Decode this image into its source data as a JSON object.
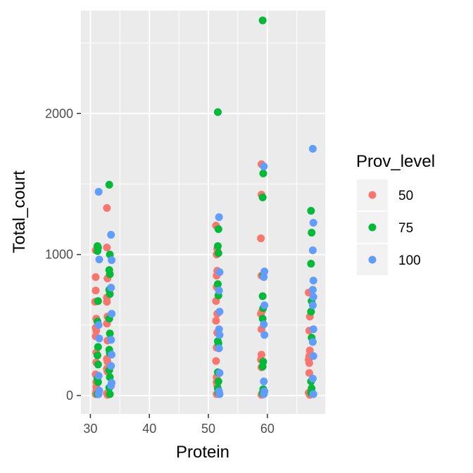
{
  "chart_data": {
    "type": "scatter",
    "xlabel": "Protein",
    "ylabel": "Total_court",
    "xlim": [
      28.4,
      69.8
    ],
    "ylim": [
      -130,
      2730
    ],
    "x_ticks": [
      30,
      40,
      50,
      60
    ],
    "y_ticks": [
      0,
      1000,
      2000
    ],
    "x_tick_labels": [
      "30",
      "40",
      "50",
      "60"
    ],
    "y_tick_labels": [
      "0",
      "1000",
      "2000"
    ],
    "grid": true,
    "legend": {
      "title": "Prov_level",
      "position": "right"
    },
    "series": [
      {
        "name": "50",
        "color": "#F8766D",
        "points": [
          [
            30.9,
            1030
          ],
          [
            30.9,
            840
          ],
          [
            30.9,
            745
          ],
          [
            30.8,
            665
          ],
          [
            31.0,
            545
          ],
          [
            30.9,
            480
          ],
          [
            31.0,
            460
          ],
          [
            30.9,
            420
          ],
          [
            31.0,
            305
          ],
          [
            31.0,
            235
          ],
          [
            30.9,
            150
          ],
          [
            31.0,
            95
          ],
          [
            31.0,
            60
          ],
          [
            31.0,
            30
          ],
          [
            30.9,
            10
          ],
          [
            32.8,
            1330
          ],
          [
            32.8,
            1050
          ],
          [
            32.9,
            830
          ],
          [
            32.8,
            695
          ],
          [
            32.8,
            665
          ],
          [
            32.9,
            560
          ],
          [
            32.8,
            510
          ],
          [
            32.9,
            390
          ],
          [
            32.8,
            260
          ],
          [
            32.9,
            240
          ],
          [
            32.8,
            190
          ],
          [
            32.9,
            170
          ],
          [
            32.8,
            15
          ],
          [
            32.9,
            5
          ],
          [
            51.3,
            1205
          ],
          [
            51.5,
            1040
          ],
          [
            51.4,
            1000
          ],
          [
            51.5,
            885
          ],
          [
            51.4,
            850
          ],
          [
            51.4,
            770
          ],
          [
            51.3,
            670
          ],
          [
            51.5,
            580
          ],
          [
            51.3,
            530
          ],
          [
            51.5,
            445
          ],
          [
            51.4,
            340
          ],
          [
            51.3,
            245
          ],
          [
            51.4,
            130
          ],
          [
            51.4,
            95
          ],
          [
            51.5,
            70
          ],
          [
            51.4,
            10
          ],
          [
            59.0,
            1640
          ],
          [
            59.0,
            1425
          ],
          [
            58.9,
            1115
          ],
          [
            59.0,
            850
          ],
          [
            59.1,
            600
          ],
          [
            58.9,
            580
          ],
          [
            59.0,
            470
          ],
          [
            59.0,
            290
          ],
          [
            58.9,
            255
          ],
          [
            59.0,
            200
          ],
          [
            59.1,
            15
          ],
          [
            59.0,
            5
          ],
          [
            67.0,
            730
          ],
          [
            67.2,
            560
          ],
          [
            67.1,
            460
          ],
          [
            67.2,
            320
          ],
          [
            67.1,
            280
          ],
          [
            67.0,
            255
          ],
          [
            67.1,
            230
          ],
          [
            67.1,
            160
          ],
          [
            67.0,
            20
          ],
          [
            67.2,
            5
          ]
        ]
      },
      {
        "name": "75",
        "color": "#00BA38",
        "points": [
          [
            31.2,
            1060
          ],
          [
            31.3,
            1050
          ],
          [
            31.2,
            1025
          ],
          [
            31.3,
            670
          ],
          [
            31.2,
            525
          ],
          [
            31.3,
            345
          ],
          [
            31.2,
            285
          ],
          [
            31.3,
            220
          ],
          [
            31.2,
            120
          ],
          [
            31.3,
            95
          ],
          [
            31.2,
            10
          ],
          [
            33.2,
            1495
          ],
          [
            33.3,
            1000
          ],
          [
            33.2,
            890
          ],
          [
            33.3,
            860
          ],
          [
            33.2,
            750
          ],
          [
            33.3,
            720
          ],
          [
            33.2,
            545
          ],
          [
            33.3,
            440
          ],
          [
            33.2,
            325
          ],
          [
            33.3,
            300
          ],
          [
            33.2,
            180
          ],
          [
            33.3,
            130
          ],
          [
            33.2,
            55
          ],
          [
            33.3,
            10
          ],
          [
            51.6,
            2010
          ],
          [
            51.7,
            1180
          ],
          [
            51.6,
            1060
          ],
          [
            51.7,
            1010
          ],
          [
            51.6,
            790
          ],
          [
            51.7,
            710
          ],
          [
            51.6,
            385
          ],
          [
            51.7,
            370
          ],
          [
            51.6,
            165
          ],
          [
            51.7,
            100
          ],
          [
            51.6,
            50
          ],
          [
            51.7,
            20
          ],
          [
            59.2,
            2660
          ],
          [
            59.3,
            1575
          ],
          [
            59.2,
            1405
          ],
          [
            59.3,
            850
          ],
          [
            59.2,
            705
          ],
          [
            59.3,
            620
          ],
          [
            59.2,
            545
          ],
          [
            59.3,
            240
          ],
          [
            59.2,
            205
          ],
          [
            59.3,
            45
          ],
          [
            59.2,
            15
          ],
          [
            67.4,
            1310
          ],
          [
            67.5,
            1155
          ],
          [
            67.4,
            935
          ],
          [
            67.5,
            670
          ],
          [
            67.4,
            595
          ],
          [
            67.5,
            410
          ],
          [
            67.4,
            100
          ],
          [
            67.5,
            50
          ],
          [
            67.4,
            20
          ]
        ]
      },
      {
        "name": "100",
        "color": "#619CFF",
        "points": [
          [
            31.4,
            1445
          ],
          [
            31.5,
            965
          ],
          [
            31.4,
            500
          ],
          [
            31.5,
            405
          ],
          [
            31.4,
            140
          ],
          [
            31.5,
            35
          ],
          [
            31.4,
            10
          ],
          [
            33.5,
            1140
          ],
          [
            33.6,
            960
          ],
          [
            33.5,
            765
          ],
          [
            33.6,
            580
          ],
          [
            33.5,
            395
          ],
          [
            33.6,
            290
          ],
          [
            33.5,
            210
          ],
          [
            33.6,
            90
          ],
          [
            33.5,
            70
          ],
          [
            51.8,
            1265
          ],
          [
            51.9,
            875
          ],
          [
            51.8,
            745
          ],
          [
            51.9,
            595
          ],
          [
            51.8,
            470
          ],
          [
            51.9,
            430
          ],
          [
            51.8,
            335
          ],
          [
            51.9,
            160
          ],
          [
            51.8,
            30
          ],
          [
            51.9,
            10
          ],
          [
            59.4,
            1625
          ],
          [
            59.5,
            880
          ],
          [
            59.4,
            840
          ],
          [
            59.5,
            640
          ],
          [
            59.4,
            505
          ],
          [
            59.5,
            430
          ],
          [
            59.4,
            100
          ],
          [
            59.5,
            30
          ],
          [
            59.4,
            10
          ],
          [
            67.7,
            1750
          ],
          [
            67.8,
            1225
          ],
          [
            67.7,
            1030
          ],
          [
            67.8,
            815
          ],
          [
            67.7,
            750
          ],
          [
            67.8,
            700
          ],
          [
            67.7,
            640
          ],
          [
            67.8,
            470
          ],
          [
            67.7,
            380
          ],
          [
            67.8,
            280
          ],
          [
            67.7,
            120
          ],
          [
            67.8,
            10
          ]
        ]
      }
    ]
  }
}
